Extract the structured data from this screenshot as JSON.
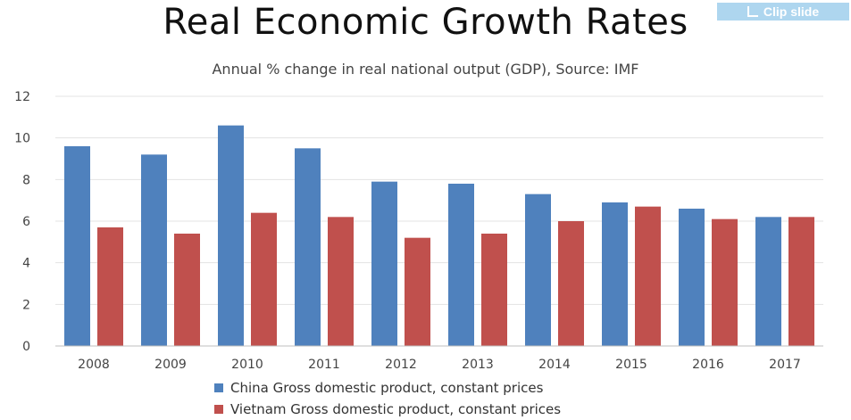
{
  "slide": {
    "title": "Real Economic Growth Rates",
    "clip_label": "Clip slide"
  },
  "chart_data": {
    "type": "bar",
    "title": "Annual % change in real national output (GDP), Source: IMF",
    "categories": [
      "2008",
      "2009",
      "2010",
      "2011",
      "2012",
      "2013",
      "2014",
      "2015",
      "2016",
      "2017"
    ],
    "series": [
      {
        "name": "China Gross domestic product, constant prices",
        "color": "#4f81bd",
        "values": [
          9.6,
          9.2,
          10.6,
          9.5,
          7.9,
          7.8,
          7.3,
          6.9,
          6.6,
          6.2
        ]
      },
      {
        "name": "Vietnam Gross domestic product, constant prices",
        "color": "#c0504d",
        "values": [
          5.7,
          5.4,
          6.4,
          6.2,
          5.2,
          5.4,
          6.0,
          6.7,
          6.1,
          6.2
        ]
      }
    ],
    "ylim": [
      0,
      12
    ],
    "yticks": [
      0,
      2,
      4,
      6,
      8,
      10,
      12
    ],
    "grid": true,
    "legend": "bottom"
  }
}
